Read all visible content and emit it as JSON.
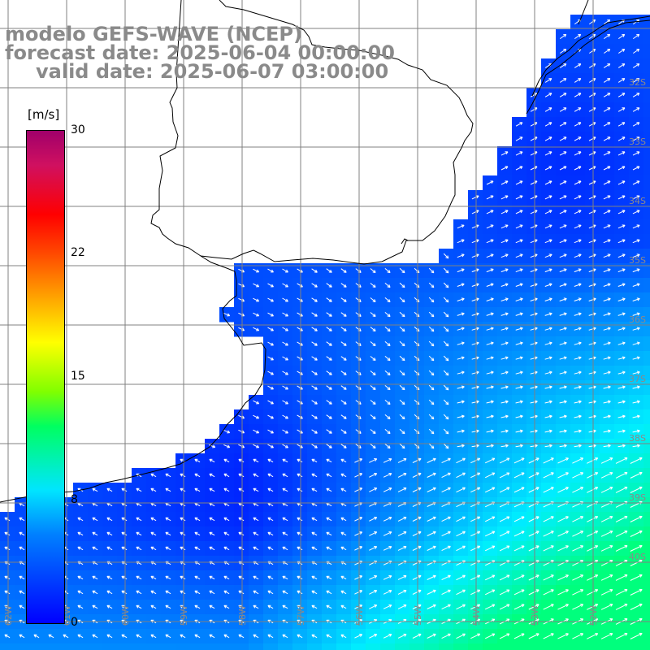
{
  "title": {
    "line1": "modelo GEFS-WAVE (NCEP)",
    "line2": "forecast date: 2025-06-04 00:00:00",
    "line3": "valid date: 2025-06-07 03:00:00"
  },
  "colorbar": {
    "unit": "[m/s]",
    "ticks": [
      "30",
      "22",
      "15",
      "8",
      "0"
    ],
    "tick_values": [
      30,
      22,
      15,
      8,
      0
    ],
    "range": [
      0,
      30
    ],
    "colors": [
      "#0000ff",
      "#0080ff",
      "#00e5ff",
      "#00ff60",
      "#ffff00",
      "#ff8000",
      "#ff0000",
      "#a0006a"
    ]
  },
  "grid": {
    "lat_labels": [
      "32S",
      "33S",
      "34S",
      "35S",
      "36S",
      "37S",
      "38S",
      "39S",
      "40S"
    ],
    "lon_labels": [
      "62W",
      "61W",
      "60W",
      "59W",
      "58W",
      "57W",
      "56W",
      "55W",
      "54W",
      "53W",
      "52W"
    ]
  },
  "map": {
    "land_color": "#ffffff",
    "coast_color": "#000000",
    "arrow_color": "#ffffff",
    "grid_color": "#808080"
  }
}
